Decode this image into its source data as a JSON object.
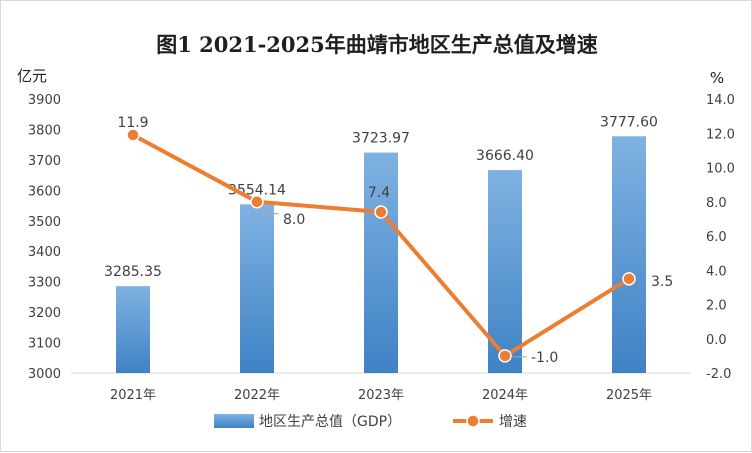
{
  "chart_data": {
    "type": "bar+line",
    "title": "图1 2021-2025年曲靖市地区生产总值及增速",
    "categories": [
      "2021年",
      "2022年",
      "2023年",
      "2024年",
      "2025年"
    ],
    "series": [
      {
        "name": "地区生产总值（GDP）",
        "type": "bar",
        "axis": "left",
        "color": "#5b9bd5",
        "values": [
          3285.35,
          3554.14,
          3723.97,
          3666.4,
          3777.6
        ],
        "labels": [
          "3285.35",
          "3554.14",
          "3723.97",
          "3666.40",
          "3777.60"
        ]
      },
      {
        "name": "增速",
        "type": "line",
        "axis": "right",
        "color": "#ed7d31",
        "values": [
          11.9,
          8.0,
          7.4,
          -1.0,
          3.5
        ],
        "labels": [
          "11.9",
          "8.0",
          "7.4",
          "-1.0",
          "3.5"
        ]
      }
    ],
    "y_left": {
      "unit": "亿元",
      "ylim": [
        3000,
        3900
      ],
      "ticks": [
        "3000",
        "3100",
        "3200",
        "3300",
        "3400",
        "3500",
        "3600",
        "3700",
        "3800",
        "3900"
      ]
    },
    "y_right": {
      "unit": "%",
      "ylim": [
        -2.0,
        14.0
      ],
      "ticks": [
        "-2.0",
        "0.0",
        "2.0",
        "4.0",
        "6.0",
        "8.0",
        "10.0",
        "12.0",
        "14.0"
      ]
    },
    "grid": false,
    "legend_position": "bottom"
  }
}
